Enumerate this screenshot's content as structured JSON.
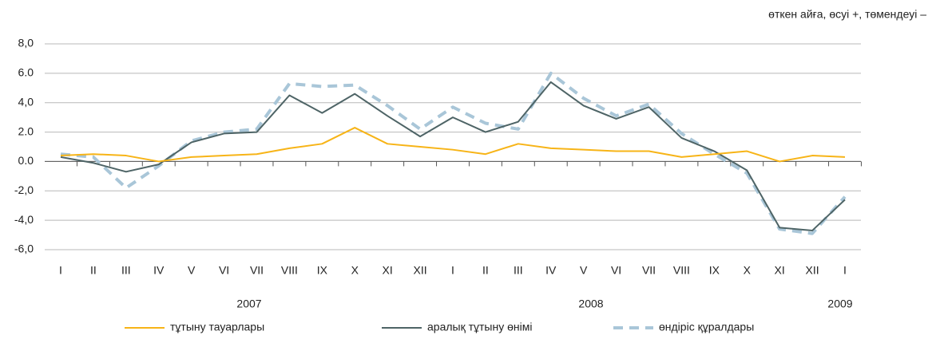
{
  "chart_data": {
    "type": "line",
    "note": "өткен айға, өсуі +, төмендеуі –",
    "categories": [
      "I",
      "II",
      "III",
      "IV",
      "V",
      "VI",
      "VII",
      "VIII",
      "IX",
      "X",
      "XI",
      "XII",
      "I",
      "II",
      "III",
      "IV",
      "V",
      "VI",
      "VII",
      "VIII",
      "IX",
      "X",
      "XI",
      "XII",
      "I"
    ],
    "years": [
      "2007",
      "2008",
      "2009"
    ],
    "ylim": [
      -6,
      8
    ],
    "yticks": [
      {
        "value": 8,
        "label": "8,0"
      },
      {
        "value": 6,
        "label": "6.0"
      },
      {
        "value": 4,
        "label": "4,0"
      },
      {
        "value": 2,
        "label": "2.0"
      },
      {
        "value": 0,
        "label": "0.0"
      },
      {
        "value": -2,
        "label": "-2,0"
      },
      {
        "value": -4,
        "label": "-4,0"
      },
      {
        "value": -6,
        "label": "-6,0"
      }
    ],
    "grid": true,
    "legend": "bottom",
    "series": [
      {
        "name": "тұтыну тауарлары",
        "color": "#f7b417",
        "style": "solid",
        "values": [
          0.4,
          0.5,
          0.4,
          0.0,
          0.3,
          0.4,
          0.5,
          0.9,
          1.2,
          2.3,
          1.2,
          1.0,
          0.8,
          0.5,
          1.2,
          0.9,
          0.8,
          0.7,
          0.7,
          0.3,
          0.5,
          0.7,
          0.0,
          0.4,
          0.3
        ]
      },
      {
        "name": "аралық тұтыну өнімі",
        "color": "#4e6466",
        "style": "solid",
        "values": [
          0.3,
          -0.1,
          -0.7,
          -0.2,
          1.3,
          1.9,
          2.0,
          4.5,
          3.3,
          4.6,
          3.1,
          1.7,
          3.0,
          2.0,
          2.7,
          5.4,
          3.8,
          2.9,
          3.7,
          1.6,
          0.7,
          -0.6,
          -4.5,
          -4.7,
          -2.6
        ]
      },
      {
        "name": "өндіріс құралдары",
        "color": "#a9c6d8",
        "style": "dashed",
        "values": [
          0.5,
          0.3,
          -1.8,
          -0.3,
          1.4,
          2.0,
          2.2,
          5.3,
          5.1,
          5.2,
          3.8,
          2.2,
          3.7,
          2.6,
          2.2,
          6.0,
          4.3,
          3.1,
          3.9,
          1.9,
          0.5,
          -0.8,
          -4.6,
          -4.9,
          -2.4
        ]
      }
    ]
  }
}
